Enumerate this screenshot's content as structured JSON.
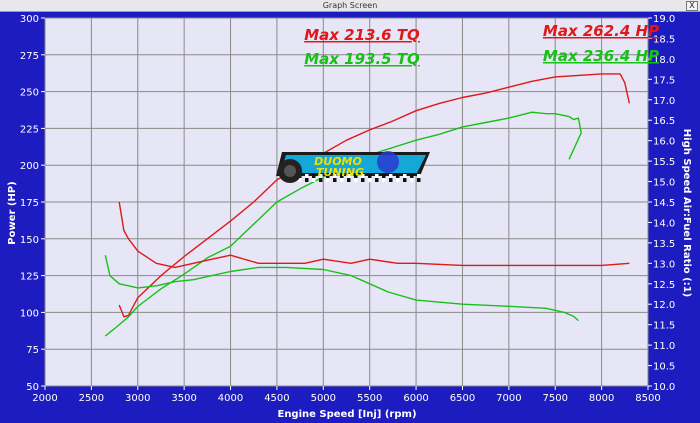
{
  "window": {
    "title": "Graph Screen",
    "close_glyph": "X"
  },
  "colors": {
    "tq": "#e01818",
    "hp": "#18c018",
    "plot_bg": "#e6e6f6",
    "frame_bg": "#1c1cc0",
    "grid": "#8a8a8a"
  },
  "logo": {
    "line1": "DUOMO",
    "line2": "TUNING"
  },
  "chart_data": {
    "type": "line",
    "xlabel": "Engine Speed [Inj] (rpm)",
    "ylabel": "Power (HP)",
    "y2label": "High Speed Air:Fuel Ratio (:1)",
    "xlim": [
      2000,
      8500
    ],
    "ylim": [
      50,
      300
    ],
    "y2lim": [
      10.0,
      19.0
    ],
    "x_ticks": [
      2000,
      2500,
      3000,
      3500,
      4000,
      4500,
      5000,
      5500,
      6000,
      6500,
      7000,
      7500,
      8000,
      8500
    ],
    "y_ticks": [
      50,
      75,
      100,
      125,
      150,
      175,
      200,
      225,
      250,
      275,
      300
    ],
    "y2_ticks": [
      "10.0",
      "10.5",
      "11.0",
      "11.5",
      "12.0",
      "12.5",
      "13.0",
      "13.5",
      "14.0",
      "14.5",
      "15.0",
      "15.5",
      "16.0",
      "16.5",
      "17.0",
      "17.5",
      "18.0",
      "18.5",
      "19.0"
    ],
    "grid": true,
    "annotations": [
      {
        "text": "Max 213.6 TQ",
        "color": "tq"
      },
      {
        "text": "Max 193.5 TQ",
        "color": "hp"
      },
      {
        "text": "Max 262.4 HP",
        "color": "tq"
      },
      {
        "text": "Max 236.4 HP",
        "color": "hp"
      }
    ],
    "series": [
      {
        "color": "tq",
        "axis": "left",
        "x": [
          2800,
          2850,
          2900,
          3000,
          3250,
          3500,
          3750,
          4000,
          4250,
          4500,
          4750,
          5000,
          5250,
          5500,
          5750,
          6000,
          6250,
          6500,
          6750,
          7000,
          7250,
          7500,
          7750,
          8000,
          8200,
          8250,
          8300
        ],
        "y": [
          105,
          97,
          98,
          110,
          125,
          138,
          150,
          162,
          175,
          190,
          199,
          208,
          217,
          224,
          230,
          237,
          242,
          246,
          249,
          253,
          257,
          260,
          261,
          262,
          262,
          256,
          242
        ]
      },
      {
        "color": "hp",
        "axis": "left",
        "x": [
          2650,
          2750,
          2900,
          3000,
          3250,
          3500,
          3750,
          4000,
          4250,
          4500,
          4750,
          5000,
          5250,
          5500,
          5750,
          6000,
          6250,
          6500,
          6750,
          7000,
          7250,
          7400,
          7500,
          7650,
          7700,
          7750,
          7780,
          7650
        ],
        "y": [
          84,
          89,
          97,
          104,
          116,
          126,
          137,
          145,
          160,
          175,
          184,
          192,
          200,
          207,
          212,
          217,
          221,
          226,
          229,
          232,
          236,
          235,
          235,
          233,
          231,
          232,
          222,
          204
        ]
      },
      {
        "color": "tq",
        "axis": "right",
        "x": [
          2800,
          2850,
          2900,
          3000,
          3200,
          3400,
          3600,
          3800,
          4000,
          4300,
          4500,
          4800,
          5000,
          5300,
          5500,
          5800,
          6000,
          6500,
          7000,
          7500,
          8000,
          8300
        ],
        "y": [
          14.5,
          13.8,
          13.6,
          13.3,
          13.0,
          12.9,
          13.0,
          13.1,
          13.2,
          13.0,
          13.0,
          13.0,
          13.1,
          13.0,
          13.1,
          13.0,
          13.0,
          12.95,
          12.95,
          12.95,
          12.95,
          13.0
        ]
      },
      {
        "color": "hp",
        "axis": "right",
        "x": [
          2650,
          2700,
          2800,
          2900,
          3000,
          3200,
          3400,
          3600,
          3800,
          4000,
          4300,
          4600,
          5000,
          5300,
          5500,
          5700,
          6000,
          6500,
          7000,
          7400,
          7600,
          7700,
          7750
        ],
        "y": [
          13.2,
          12.7,
          12.5,
          12.45,
          12.4,
          12.45,
          12.55,
          12.6,
          12.7,
          12.8,
          12.9,
          12.9,
          12.85,
          12.7,
          12.5,
          12.3,
          12.1,
          12.0,
          11.95,
          11.9,
          11.8,
          11.7,
          11.6
        ]
      }
    ]
  }
}
